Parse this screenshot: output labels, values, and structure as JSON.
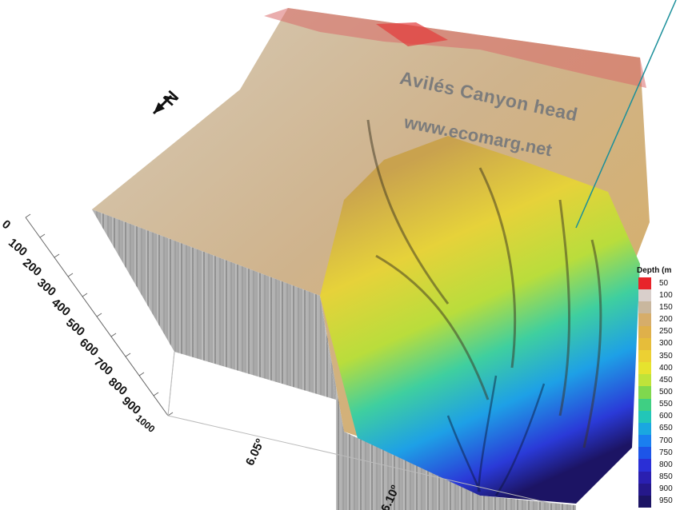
{
  "map": {
    "title": "Avilés Canyon head",
    "url": "www.ecomarg.net",
    "north_label": "N",
    "depth_axis_ticks": [
      "0",
      "100",
      "200",
      "300",
      "400",
      "500",
      "600",
      "700",
      "800",
      "900",
      "1000"
    ],
    "longitude_ticks": [
      "6.05º",
      "6.10º"
    ],
    "legend": {
      "title": "Depth (m",
      "ticks": [
        "50",
        "100",
        "150",
        "200",
        "250",
        "300",
        "350",
        "400",
        "450",
        "500",
        "550",
        "600",
        "650",
        "700",
        "750",
        "800",
        "850",
        "900",
        "950"
      ],
      "colors": [
        "#e8242a",
        "#d9cfcb",
        "#c9b79e",
        "#d6ad6a",
        "#dfb04a",
        "#e6bd3a",
        "#ecd033",
        "#e6e32e",
        "#bfe33a",
        "#7fd84e",
        "#3fcf83",
        "#22c6b8",
        "#1aa7e0",
        "#1a7ff0",
        "#1d55e8",
        "#2a2fd6",
        "#2a1fb0",
        "#25188a",
        "#1c1464"
      ]
    }
  }
}
